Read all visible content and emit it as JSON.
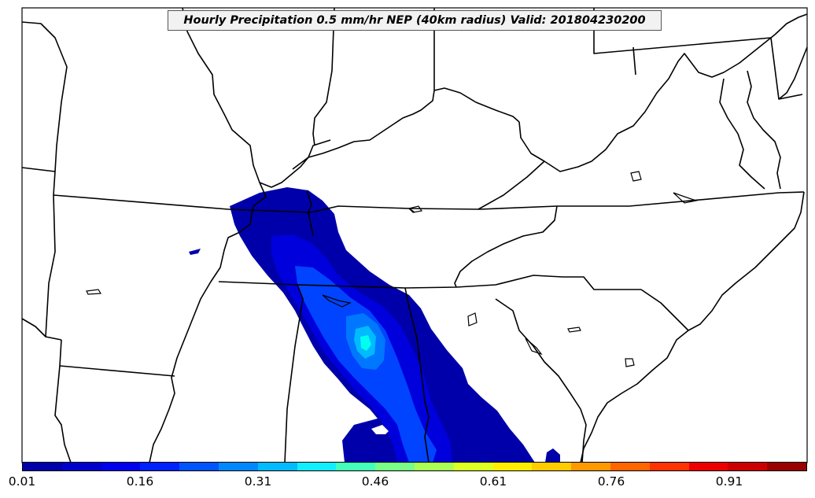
{
  "map": {
    "title": "Hourly Precipitation 0.5 mm/hr NEP (40km radius) Valid: 201804230200",
    "field_colors": [
      "#0000aa",
      "#0000dd",
      "#0044ff",
      "#0077ff",
      "#00bbff",
      "#00ffee"
    ]
  },
  "colorbar": {
    "colors": [
      "#0000aa",
      "#0000cc",
      "#0000ee",
      "#0022ff",
      "#0055ff",
      "#0088ff",
      "#00bbff",
      "#11eeff",
      "#44ffbb",
      "#77ff88",
      "#aaff55",
      "#ddff22",
      "#ffee00",
      "#ffcc00",
      "#ff9900",
      "#ff6600",
      "#ff3300",
      "#ee0000",
      "#cc0000",
      "#990000"
    ],
    "ticks": [
      "0.01",
      "0.16",
      "0.31",
      "0.46",
      "0.61",
      "0.76",
      "0.91"
    ]
  }
}
